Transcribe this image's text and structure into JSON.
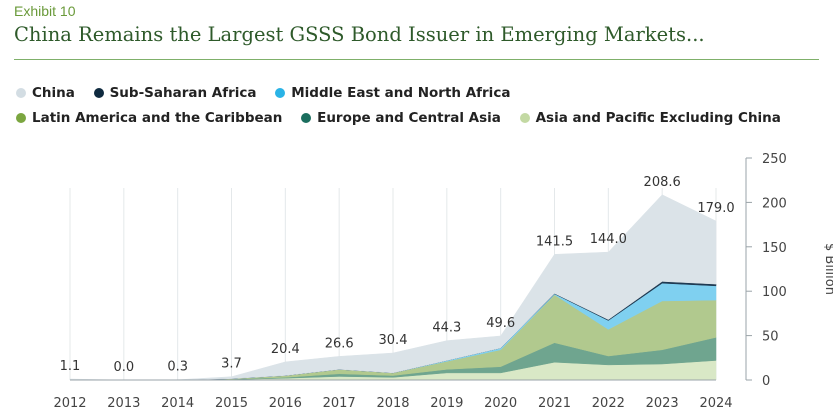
{
  "header": {
    "exhibit": "Exhibit 10",
    "title": "China Remains the Largest GSSS Bond Issuer in Emerging Markets..."
  },
  "legend": [
    {
      "label": "China",
      "color": "#d3dde3"
    },
    {
      "label": "Sub-Saharan Africa",
      "color": "#0f2a3f"
    },
    {
      "label": "Middle East and North Africa",
      "color": "#2ab3e6"
    },
    {
      "label": "Latin America and the Caribbean",
      "color": "#7ba640"
    },
    {
      "label": "Europe and Central Asia",
      "color": "#1b6e5e"
    },
    {
      "label": "Asia and Pacific Excluding China",
      "color": "#c3d9a3"
    }
  ],
  "chart_data": {
    "type": "area",
    "stacked": true,
    "x": [
      "2012",
      "2013",
      "2014",
      "2015",
      "2016",
      "2017",
      "2018",
      "2019",
      "2020",
      "2021",
      "2022",
      "2023",
      "2024"
    ],
    "ylabel": "$ Billion",
    "ylim": [
      0,
      250
    ],
    "yticks": [
      0,
      50,
      100,
      150,
      200,
      250
    ],
    "y_axis_side": "right",
    "totals": [
      1.1,
      0.0,
      0.3,
      3.7,
      20.4,
      26.6,
      30.4,
      44.3,
      49.6,
      141.5,
      144.0,
      208.6,
      179.0
    ],
    "total_labels": [
      "1.1",
      "0.0",
      "0.3",
      "3.7",
      "20.4",
      "26.6",
      "30.4",
      "44.3",
      "49.6",
      "141.5",
      "144.0",
      "208.6",
      "179.0"
    ],
    "series": [
      {
        "name": "Asia and Pacific Excluding China",
        "color": "#d9e8c6",
        "values": [
          0,
          0,
          0,
          0.5,
          2,
          4,
          3,
          8,
          8,
          20,
          17,
          18,
          22
        ]
      },
      {
        "name": "Europe and Central Asia",
        "color": "#6fa58f",
        "values": [
          0,
          0,
          0,
          0.5,
          1,
          3,
          2,
          4,
          7,
          22,
          10,
          16,
          26
        ]
      },
      {
        "name": "Latin America and the Caribbean",
        "color": "#b1c98e",
        "values": [
          0,
          0,
          0,
          0.5,
          2,
          5,
          3,
          9,
          19,
          54,
          30,
          55,
          42
        ]
      },
      {
        "name": "Middle East and North Africa",
        "color": "#7fd0f0",
        "values": [
          0,
          0,
          0,
          0,
          0,
          0,
          0,
          1,
          2,
          1,
          10,
          20,
          16
        ]
      },
      {
        "name": "Sub-Saharan Africa",
        "color": "#1f3a52",
        "values": [
          0,
          0,
          0,
          0,
          0,
          0,
          0,
          0,
          0,
          0.5,
          1,
          2,
          2
        ]
      },
      {
        "name": "China",
        "color": "#dbe3e8",
        "values": [
          1.1,
          0,
          0.3,
          2.2,
          15.4,
          14.6,
          22.4,
          22.3,
          13.6,
          44,
          76,
          97.6,
          71
        ]
      }
    ]
  }
}
